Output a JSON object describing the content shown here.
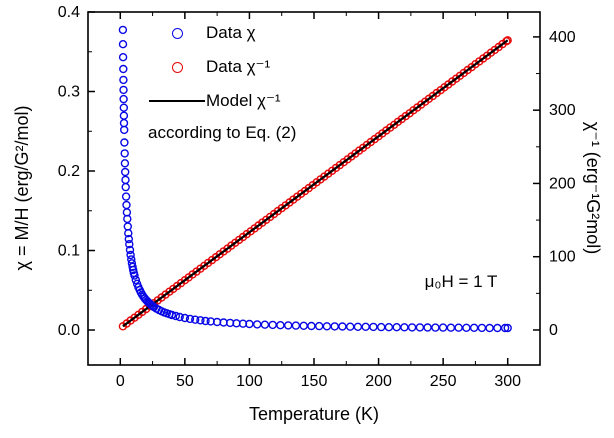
{
  "chart_data": {
    "type": "scatter",
    "title": "",
    "xlabel": "Temperature (K)",
    "ylabel_left": "χ = M/H (erg/G²/mol)",
    "ylabel_right": "χ⁻¹ (erg⁻¹G²mol)",
    "annotation": "μ₀H = 1 T",
    "legend_note": "according to Eq. (2)",
    "legend_position": "upper-left",
    "grid": false,
    "xlim": [
      -25,
      325
    ],
    "ylim_left": [
      -0.044,
      0.4
    ],
    "ylim_right": [
      -47.8,
      434
    ],
    "xticks": [
      0,
      50,
      100,
      150,
      200,
      250,
      300
    ],
    "xtick_labels": [
      "0",
      "50",
      "100",
      "150",
      "200",
      "250",
      "300"
    ],
    "xticks_minor": [
      25,
      75,
      125,
      175,
      225,
      275
    ],
    "yticks_left": [
      0.0,
      0.1,
      0.2,
      0.3,
      0.4
    ],
    "ytick_left_labels": [
      "0.0",
      "0.1",
      "0.2",
      "0.3",
      "0.4"
    ],
    "yticks_left_minor": [
      0.05,
      0.15,
      0.25,
      0.35
    ],
    "yticks_right": [
      0,
      100,
      200,
      300,
      400
    ],
    "ytick_right_labels": [
      "0",
      "100",
      "200",
      "300",
      "400"
    ],
    "yticks_right_minor": [
      50,
      150,
      250,
      350
    ],
    "series": [
      {
        "name": "Data χ",
        "axis": "left",
        "marker": "open-circle",
        "color": "#0707e6",
        "z": 3,
        "points": [
          [
            2,
            0.3775
          ],
          [
            2.1,
            0.3595
          ],
          [
            2.2,
            0.3432
          ],
          [
            2.3,
            0.3283
          ],
          [
            2.4,
            0.3146
          ],
          [
            2.5,
            0.302
          ],
          [
            2.6,
            0.2904
          ],
          [
            2.7,
            0.2796
          ],
          [
            2.8,
            0.2696
          ],
          [
            2.9,
            0.2603
          ],
          [
            3,
            0.2517
          ],
          [
            3.2,
            0.2359
          ],
          [
            3.4,
            0.2221
          ],
          [
            3.6,
            0.2097
          ],
          [
            3.8,
            0.1987
          ],
          [
            4,
            0.1888
          ],
          [
            4.2,
            0.1798
          ],
          [
            4.5,
            0.1678
          ],
          [
            4.8,
            0.1573
          ],
          [
            5.1,
            0.148
          ],
          [
            5.4,
            0.1398
          ],
          [
            5.8,
            0.1302
          ],
          [
            6.2,
            0.1218
          ],
          [
            6.6,
            0.1144
          ],
          [
            7,
            0.1079
          ],
          [
            7.5,
            0.1007
          ],
          [
            8,
            0.0944
          ],
          [
            8.5,
            0.0888
          ],
          [
            9,
            0.0839
          ],
          [
            9.5,
            0.0795
          ],
          [
            10,
            0.0755
          ],
          [
            10.5,
            0.0719
          ],
          [
            11,
            0.0686
          ],
          [
            12,
            0.0629
          ],
          [
            13,
            0.0581
          ],
          [
            14,
            0.0539
          ],
          [
            15,
            0.0503
          ],
          [
            16,
            0.0472
          ],
          [
            17,
            0.0444
          ],
          [
            18,
            0.0419
          ],
          [
            19,
            0.0397
          ],
          [
            20,
            0.0378
          ],
          [
            21,
            0.036
          ],
          [
            22,
            0.0343
          ],
          [
            23,
            0.0328
          ],
          [
            24,
            0.0315
          ],
          [
            25,
            0.0302
          ],
          [
            26,
            0.029
          ],
          [
            28,
            0.027
          ],
          [
            30,
            0.0252
          ],
          [
            32,
            0.0236
          ],
          [
            34,
            0.0222
          ],
          [
            36,
            0.021
          ],
          [
            38,
            0.0199
          ],
          [
            40,
            0.0189
          ],
          [
            43,
            0.0176
          ],
          [
            46,
            0.0164
          ],
          [
            50,
            0.0151
          ],
          [
            54,
            0.014
          ],
          [
            58,
            0.013
          ],
          [
            62,
            0.0122
          ],
          [
            66,
            0.0114
          ],
          [
            70,
            0.0108
          ],
          [
            75,
            0.0101
          ],
          [
            80,
            0.0094
          ],
          [
            85,
            0.0089
          ],
          [
            90,
            0.0084
          ],
          [
            95,
            0.0079
          ],
          [
            100,
            0.0076
          ],
          [
            106,
            0.0071
          ],
          [
            112,
            0.0067
          ],
          [
            118,
            0.0064
          ],
          [
            124,
            0.0061
          ],
          [
            130,
            0.0058
          ],
          [
            136,
            0.0056
          ],
          [
            142,
            0.0053
          ],
          [
            148,
            0.0051
          ],
          [
            154,
            0.0049
          ],
          [
            160,
            0.0047
          ],
          [
            166,
            0.0045
          ],
          [
            172,
            0.0044
          ],
          [
            178,
            0.0042
          ],
          [
            184,
            0.0041
          ],
          [
            190,
            0.004
          ],
          [
            196,
            0.0039
          ],
          [
            202,
            0.0037
          ],
          [
            208,
            0.0036
          ],
          [
            214,
            0.0035
          ],
          [
            220,
            0.0034
          ],
          [
            226,
            0.0033
          ],
          [
            232,
            0.0033
          ],
          [
            238,
            0.0032
          ],
          [
            244,
            0.0031
          ],
          [
            250,
            0.003
          ],
          [
            256,
            0.0029
          ],
          [
            262,
            0.0029
          ],
          [
            268,
            0.0028
          ],
          [
            274,
            0.0028
          ],
          [
            280,
            0.0027
          ],
          [
            286,
            0.0026
          ],
          [
            292,
            0.0026
          ],
          [
            298,
            0.0025
          ],
          [
            300,
            0.0025
          ]
        ]
      },
      {
        "name": "Data χ⁻¹",
        "axis": "right",
        "marker": "open-circle",
        "color": "#e60808",
        "z": 1,
        "points": [
          [
            2,
            5
          ],
          [
            5,
            8.9
          ],
          [
            8,
            12.9
          ],
          [
            11,
            16.8
          ],
          [
            14,
            20.7
          ],
          [
            17,
            24.7
          ],
          [
            20,
            28.6
          ],
          [
            23,
            32.5
          ],
          [
            26,
            36.5
          ],
          [
            29,
            40.4
          ],
          [
            32,
            44.3
          ],
          [
            35,
            48.3
          ],
          [
            38,
            52.2
          ],
          [
            41,
            56.1
          ],
          [
            44,
            60
          ],
          [
            47,
            64
          ],
          [
            50,
            67.9
          ],
          [
            53,
            71.8
          ],
          [
            56,
            75.8
          ],
          [
            59,
            79.7
          ],
          [
            62,
            83.6
          ],
          [
            65,
            87.6
          ],
          [
            68,
            91.5
          ],
          [
            71,
            95.4
          ],
          [
            74,
            99.3
          ],
          [
            77,
            103.3
          ],
          [
            80,
            107.2
          ],
          [
            83,
            111.1
          ],
          [
            86,
            115.1
          ],
          [
            89,
            119
          ],
          [
            92,
            122.9
          ],
          [
            95,
            126.9
          ],
          [
            98,
            130.8
          ],
          [
            101,
            134.7
          ],
          [
            104,
            138.6
          ],
          [
            107,
            142.6
          ],
          [
            110,
            146.5
          ],
          [
            113,
            150.4
          ],
          [
            116,
            154.4
          ],
          [
            119,
            158.3
          ],
          [
            122,
            162.2
          ],
          [
            125,
            166.2
          ],
          [
            128,
            170.1
          ],
          [
            131,
            174
          ],
          [
            134,
            177.9
          ],
          [
            137,
            181.9
          ],
          [
            140,
            185.8
          ],
          [
            143,
            189.7
          ],
          [
            146,
            193.7
          ],
          [
            149,
            197.6
          ],
          [
            152,
            201.5
          ],
          [
            155,
            205.5
          ],
          [
            158,
            209.4
          ],
          [
            161,
            213.3
          ],
          [
            164,
            217.2
          ],
          [
            167,
            221.2
          ],
          [
            170,
            225.1
          ],
          [
            173,
            229
          ],
          [
            176,
            233
          ],
          [
            179,
            236.9
          ],
          [
            182,
            240.8
          ],
          [
            185,
            244.8
          ],
          [
            188,
            248.7
          ],
          [
            191,
            252.6
          ],
          [
            194,
            256.5
          ],
          [
            197,
            260.5
          ],
          [
            200,
            264.4
          ],
          [
            203,
            268.3
          ],
          [
            206,
            272.3
          ],
          [
            209,
            276.2
          ],
          [
            212,
            280.1
          ],
          [
            215,
            284.1
          ],
          [
            218,
            288
          ],
          [
            221,
            291.9
          ],
          [
            224,
            295.8
          ],
          [
            227,
            299.8
          ],
          [
            230,
            303.7
          ],
          [
            233,
            307.6
          ],
          [
            236,
            311.6
          ],
          [
            239,
            315.5
          ],
          [
            242,
            319.4
          ],
          [
            245,
            323.4
          ],
          [
            248,
            327.3
          ],
          [
            251,
            331.2
          ],
          [
            254,
            335.1
          ],
          [
            257,
            339.1
          ],
          [
            260,
            343
          ],
          [
            263,
            346.9
          ],
          [
            266,
            350.9
          ],
          [
            269,
            354.8
          ],
          [
            272,
            358.7
          ],
          [
            275,
            362.7
          ],
          [
            278,
            366.6
          ],
          [
            281,
            370.5
          ],
          [
            284,
            374.4
          ],
          [
            287,
            378.4
          ],
          [
            290,
            382.3
          ],
          [
            293,
            386.2
          ],
          [
            296,
            390.2
          ],
          [
            299,
            394.1
          ],
          [
            300,
            395.4
          ]
        ]
      },
      {
        "name": "Model χ⁻¹",
        "axis": "right",
        "marker": "line",
        "color": "#000000",
        "z": 2,
        "points": [
          [
            2,
            5.0
          ],
          [
            300,
            395.4
          ]
        ]
      }
    ]
  }
}
